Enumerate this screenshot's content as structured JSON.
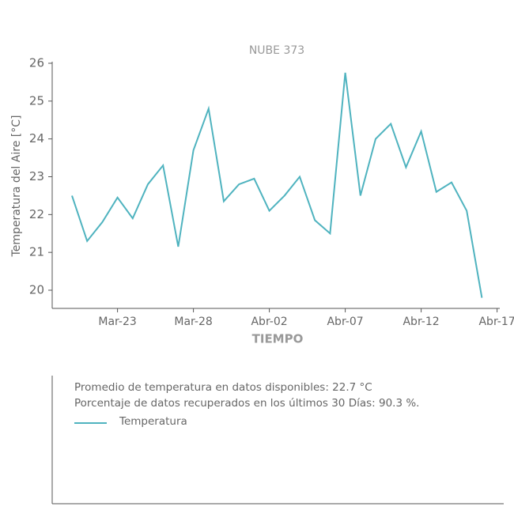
{
  "chart_data": {
    "type": "line",
    "title": "NUBE 373",
    "x_label": "TIEMPO",
    "y_label": "Temperatura del Aire [°C]",
    "x": [
      "Mar-20",
      "Mar-21",
      "Mar-22",
      "Mar-23",
      "Mar-24",
      "Mar-25",
      "Mar-26",
      "Mar-27",
      "Mar-28",
      "Mar-29",
      "Mar-30",
      "Mar-31",
      "Abr-01",
      "Abr-02",
      "Abr-03",
      "Abr-04",
      "Abr-05",
      "Abr-06",
      "Abr-07",
      "Abr-08",
      "Abr-09",
      "Abr-10",
      "Abr-11",
      "Abr-12",
      "Abr-13",
      "Abr-14",
      "Abr-15",
      "Abr-16"
    ],
    "series": [
      {
        "name": "Temperatura",
        "color": "#4fb3bf",
        "values": [
          22.5,
          21.3,
          21.8,
          22.45,
          21.9,
          22.8,
          23.3,
          21.15,
          23.7,
          24.8,
          22.35,
          22.8,
          22.95,
          22.1,
          22.5,
          23.0,
          21.85,
          21.5,
          25.75,
          22.5,
          24.0,
          24.4,
          23.25,
          24.2,
          22.6,
          22.85,
          22.1,
          19.8
        ]
      }
    ],
    "xticks": [
      "Mar-23",
      "Mar-28",
      "Abr-02",
      "Abr-07",
      "Abr-12",
      "Abr-17"
    ],
    "ylim": [
      19.75,
      26.25
    ],
    "yticks": [
      20,
      21,
      22,
      23,
      24,
      25,
      26
    ],
    "info": [
      "Promedio de temperatura en datos disponibles: 22.7 °C",
      "Porcentaje de datos recuperados en los últimos 30 Días: 90.3 %."
    ]
  }
}
